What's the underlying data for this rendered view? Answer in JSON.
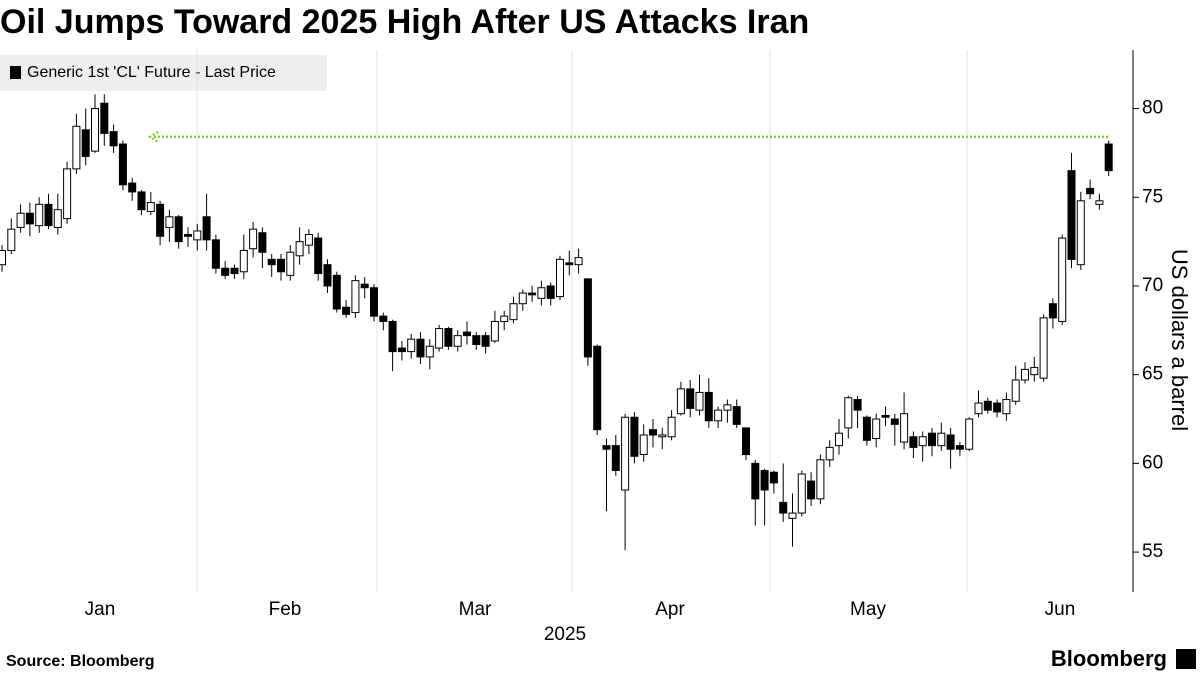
{
  "chart_data": {
    "type": "candlestick",
    "title": "Oil Jumps Toward 2025 High After US Attacks Iran",
    "x_labels": [
      "Jan",
      "Feb",
      "Mar",
      "Apr",
      "May",
      "Jun"
    ],
    "x_axis_title": "2025",
    "y_axis_title": "US dollars a barrel",
    "source": "Source: Bloomberg",
    "brand": "Bloomberg",
    "ylim": [
      52.75,
      83.3
    ],
    "yticks": [
      55,
      60,
      65,
      70,
      75,
      80
    ],
    "highlight": {
      "value": 78.4,
      "color": "#8dd11f"
    },
    "series": [
      {
        "name": "Generic 1st 'CL' Future - Last Price",
        "color": "#000000",
        "up_color": "#ffffff",
        "open": [
          71.2,
          72.0,
          73.3,
          74.1,
          73.4,
          74.6,
          73.3,
          73.8,
          76.6,
          78.8,
          77.6,
          80.3,
          78.7,
          78.0,
          75.8,
          75.3,
          74.2,
          74.6,
          73.3,
          73.9,
          72.9,
          72.6,
          73.9,
          72.6,
          71.0,
          71.0,
          70.8,
          72.1,
          73.0,
          71.5,
          71.5,
          70.6,
          71.7,
          72.3,
          72.7,
          71.2,
          70.6,
          68.8,
          68.5,
          70.1,
          69.9,
          68.3,
          68.0,
          66.5,
          66.3,
          67.0,
          66.0,
          66.5,
          67.6,
          66.6,
          67.4,
          67.2,
          67.2,
          66.9,
          68.0,
          68.1,
          69.0,
          69.6,
          69.3,
          70.0,
          69.4,
          71.3,
          71.2,
          70.4,
          66.6,
          61.0,
          61.0,
          58.5,
          62.6,
          60.5,
          61.9,
          61.5,
          61.5,
          62.8,
          64.2,
          63.0,
          64.0,
          62.4,
          63.0,
          63.2,
          62.0,
          60.0,
          59.6,
          59.5,
          57.8,
          56.9,
          57.2,
          59.0,
          58.0,
          60.2,
          61.0,
          62.0,
          63.6,
          62.6,
          61.4,
          62.7,
          62.5,
          61.2,
          61.5,
          61.0,
          61.7,
          61.0,
          61.6,
          61.0,
          60.8,
          62.8,
          63.5,
          63.4,
          62.8,
          63.5,
          64.7,
          65.0,
          64.8,
          69.0,
          68.0,
          76.5,
          71.2,
          75.5,
          74.6,
          78.0
        ],
        "high": [
          72.3,
          73.8,
          74.6,
          74.7,
          75.0,
          75.2,
          75.2,
          77.0,
          79.7,
          80.0,
          80.8,
          80.8,
          79.1,
          78.2,
          76.1,
          75.4,
          75.3,
          74.8,
          74.3,
          74.0,
          73.3,
          73.5,
          75.2,
          72.9,
          71.4,
          71.2,
          72.9,
          73.6,
          73.3,
          71.8,
          71.8,
          72.3,
          73.3,
          73.2,
          73.0,
          71.5,
          70.8,
          69.2,
          70.6,
          70.5,
          70.1,
          68.5,
          68.1,
          66.9,
          67.3,
          67.4,
          67.0,
          67.8,
          67.7,
          67.5,
          68.0,
          67.4,
          67.4,
          68.6,
          68.6,
          69.4,
          69.8,
          70.0,
          70.3,
          70.2,
          71.7,
          72.0,
          72.1,
          70.4,
          66.7,
          61.4,
          61.6,
          62.8,
          62.9,
          62.2,
          62.5,
          62.0,
          63.0,
          64.6,
          64.7,
          65.0,
          64.8,
          63.2,
          63.6,
          63.6,
          62.0,
          60.2,
          59.7,
          59.6,
          60.0,
          58.3,
          59.6,
          59.5,
          60.5,
          61.3,
          62.5,
          63.8,
          63.8,
          62.7,
          62.8,
          63.2,
          62.8,
          64.0,
          61.8,
          61.8,
          62.0,
          62.3,
          62.0,
          61.2,
          62.6,
          64.1,
          63.7,
          63.6,
          64.0,
          65.5,
          65.7,
          66.0,
          68.4,
          69.3,
          72.9,
          77.5,
          75.3,
          76.0,
          75.2,
          78.2
        ],
        "low": [
          70.8,
          71.8,
          73.0,
          72.8,
          73.0,
          73.2,
          72.9,
          73.5,
          76.3,
          76.8,
          77.5,
          77.9,
          77.5,
          75.4,
          74.8,
          74.0,
          74.0,
          72.3,
          72.5,
          72.1,
          72.2,
          72.0,
          72.0,
          70.7,
          70.4,
          70.4,
          70.4,
          71.6,
          71.0,
          70.5,
          70.3,
          70.3,
          71.2,
          71.8,
          70.3,
          69.6,
          68.5,
          68.2,
          68.2,
          69.3,
          68.0,
          67.5,
          65.2,
          65.8,
          65.9,
          65.6,
          65.3,
          66.3,
          66.4,
          66.3,
          66.7,
          66.4,
          66.2,
          66.8,
          67.5,
          67.9,
          68.6,
          69.1,
          68.9,
          68.9,
          69.2,
          70.6,
          70.7,
          65.5,
          61.6,
          57.3,
          59.3,
          55.1,
          60.0,
          60.1,
          60.9,
          60.8,
          61.3,
          62.7,
          62.6,
          62.7,
          62.0,
          62.0,
          62.3,
          62.0,
          60.2,
          56.5,
          56.5,
          58.3,
          56.7,
          55.3,
          57.0,
          57.6,
          57.7,
          59.8,
          60.5,
          61.4,
          62.0,
          61.0,
          60.9,
          62.1,
          61.0,
          60.8,
          60.3,
          60.1,
          60.4,
          60.7,
          59.7,
          60.4,
          60.7,
          62.6,
          62.8,
          62.6,
          62.4,
          63.3,
          64.5,
          64.6,
          64.6,
          67.6,
          67.8,
          71.0,
          70.9,
          74.9,
          74.3,
          76.2
        ],
        "close": [
          72.0,
          73.2,
          74.1,
          73.5,
          74.6,
          73.4,
          74.3,
          76.6,
          79.0,
          77.3,
          80.0,
          78.6,
          77.9,
          75.7,
          75.3,
          74.3,
          74.7,
          72.8,
          73.9,
          72.5,
          72.8,
          73.1,
          72.6,
          71.0,
          70.6,
          70.7,
          72.0,
          73.2,
          71.9,
          71.2,
          70.8,
          71.9,
          72.5,
          72.9,
          70.7,
          70.0,
          68.7,
          68.4,
          70.3,
          69.9,
          68.3,
          68.0,
          66.3,
          66.3,
          67.0,
          66.0,
          66.6,
          67.6,
          66.6,
          67.2,
          67.2,
          66.7,
          66.6,
          68.0,
          68.3,
          69.0,
          69.6,
          69.5,
          69.9,
          69.3,
          71.5,
          71.2,
          71.6,
          66.0,
          61.9,
          60.8,
          59.6,
          62.6,
          60.4,
          61.6,
          61.6,
          61.6,
          62.6,
          64.2,
          63.1,
          64.0,
          62.4,
          63.0,
          63.3,
          62.2,
          60.5,
          58.0,
          58.5,
          58.9,
          57.2,
          57.2,
          59.4,
          58.0,
          60.2,
          60.9,
          61.7,
          63.7,
          63.0,
          61.3,
          62.5,
          62.6,
          62.2,
          62.8,
          60.9,
          61.5,
          61.0,
          61.7,
          60.8,
          60.8,
          62.5,
          63.4,
          63.0,
          62.9,
          63.6,
          64.7,
          65.3,
          65.4,
          68.2,
          68.2,
          72.7,
          71.5,
          74.8,
          75.2,
          74.8,
          76.5
        ]
      }
    ]
  }
}
